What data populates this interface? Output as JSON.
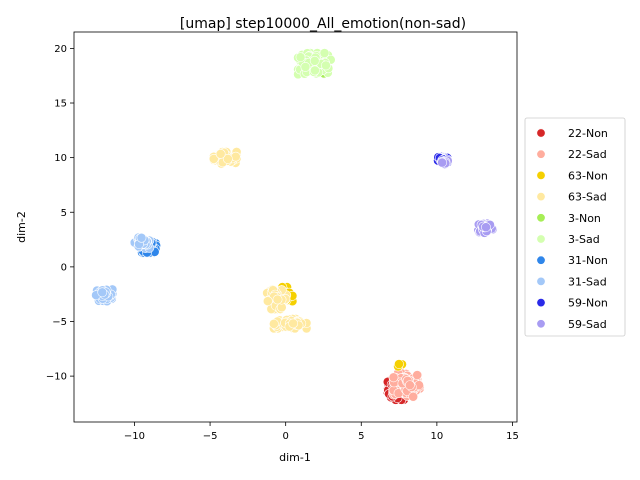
{
  "chart_data": {
    "type": "scatter",
    "title": "[umap] step10000_All_emotion(non-sad)",
    "xlabel": "dim-1",
    "ylabel": "dim-2",
    "xlim": [
      -14,
      15.3
    ],
    "ylim": [
      -14.2,
      21.5
    ],
    "xticks": [
      -10,
      -5,
      0,
      5,
      10,
      15
    ],
    "yticks": [
      -10,
      -5,
      0,
      5,
      10,
      15,
      20
    ],
    "grid": false,
    "legend_position": "right",
    "series": [
      {
        "name": "22-Non",
        "color": "#d62728",
        "clusters": [
          {
            "center": [
              7.4,
              -11.2
            ],
            "spread": [
              0.6,
              0.9
            ],
            "count": 70
          }
        ]
      },
      {
        "name": "22-Sad",
        "color": "#ffad9e",
        "clusters": [
          {
            "center": [
              8.0,
              -10.8
            ],
            "spread": [
              0.8,
              1.0
            ],
            "count": 110
          }
        ]
      },
      {
        "name": "63-Non",
        "color": "#f5d000",
        "clusters": [
          {
            "center": [
              -0.2,
              -2.5
            ],
            "spread": [
              0.6,
              0.6
            ],
            "count": 30
          },
          {
            "center": [
              7.5,
              -9.0
            ],
            "spread": [
              0.3,
              0.2
            ],
            "count": 4
          }
        ]
      },
      {
        "name": "63-Sad",
        "color": "#ffe9a0",
        "clusters": [
          {
            "center": [
              -4.0,
              10.0
            ],
            "spread": [
              0.7,
              0.5
            ],
            "count": 45
          },
          {
            "center": [
              -0.6,
              -3.0
            ],
            "spread": [
              0.6,
              0.8
            ],
            "count": 45
          },
          {
            "center": [
              0.3,
              -5.2
            ],
            "spread": [
              1.0,
              0.4
            ],
            "count": 55
          }
        ]
      },
      {
        "name": "3-Non",
        "color": "#a6ee55",
        "clusters": [
          {
            "center": [
              2.2,
              18.5
            ],
            "spread": [
              0.6,
              0.8
            ],
            "count": 30
          }
        ]
      },
      {
        "name": "3-Sad",
        "color": "#d4ffb0",
        "clusters": [
          {
            "center": [
              1.9,
              18.6
            ],
            "spread": [
              1.0,
              0.9
            ],
            "count": 90
          }
        ]
      },
      {
        "name": "31-Non",
        "color": "#2f86ea",
        "clusters": [
          {
            "center": [
              -9.0,
              1.8
            ],
            "spread": [
              0.5,
              0.45
            ],
            "count": 45
          }
        ]
      },
      {
        "name": "31-Sad",
        "color": "#a3c8f8",
        "clusters": [
          {
            "center": [
              -9.5,
              2.2
            ],
            "spread": [
              0.45,
              0.45
            ],
            "count": 30
          },
          {
            "center": [
              -12.0,
              -2.6
            ],
            "spread": [
              0.5,
              0.5
            ],
            "count": 40
          }
        ]
      },
      {
        "name": "59-Non",
        "color": "#2a2ae8",
        "clusters": [
          {
            "center": [
              10.4,
              9.8
            ],
            "spread": [
              0.3,
              0.35
            ],
            "count": 30
          }
        ]
      },
      {
        "name": "59-Sad",
        "color": "#a89cf2",
        "clusters": [
          {
            "center": [
              13.2,
              3.6
            ],
            "spread": [
              0.45,
              0.45
            ],
            "count": 40
          },
          {
            "center": [
              10.5,
              9.6
            ],
            "spread": [
              0.25,
              0.25
            ],
            "count": 5
          }
        ]
      }
    ]
  }
}
